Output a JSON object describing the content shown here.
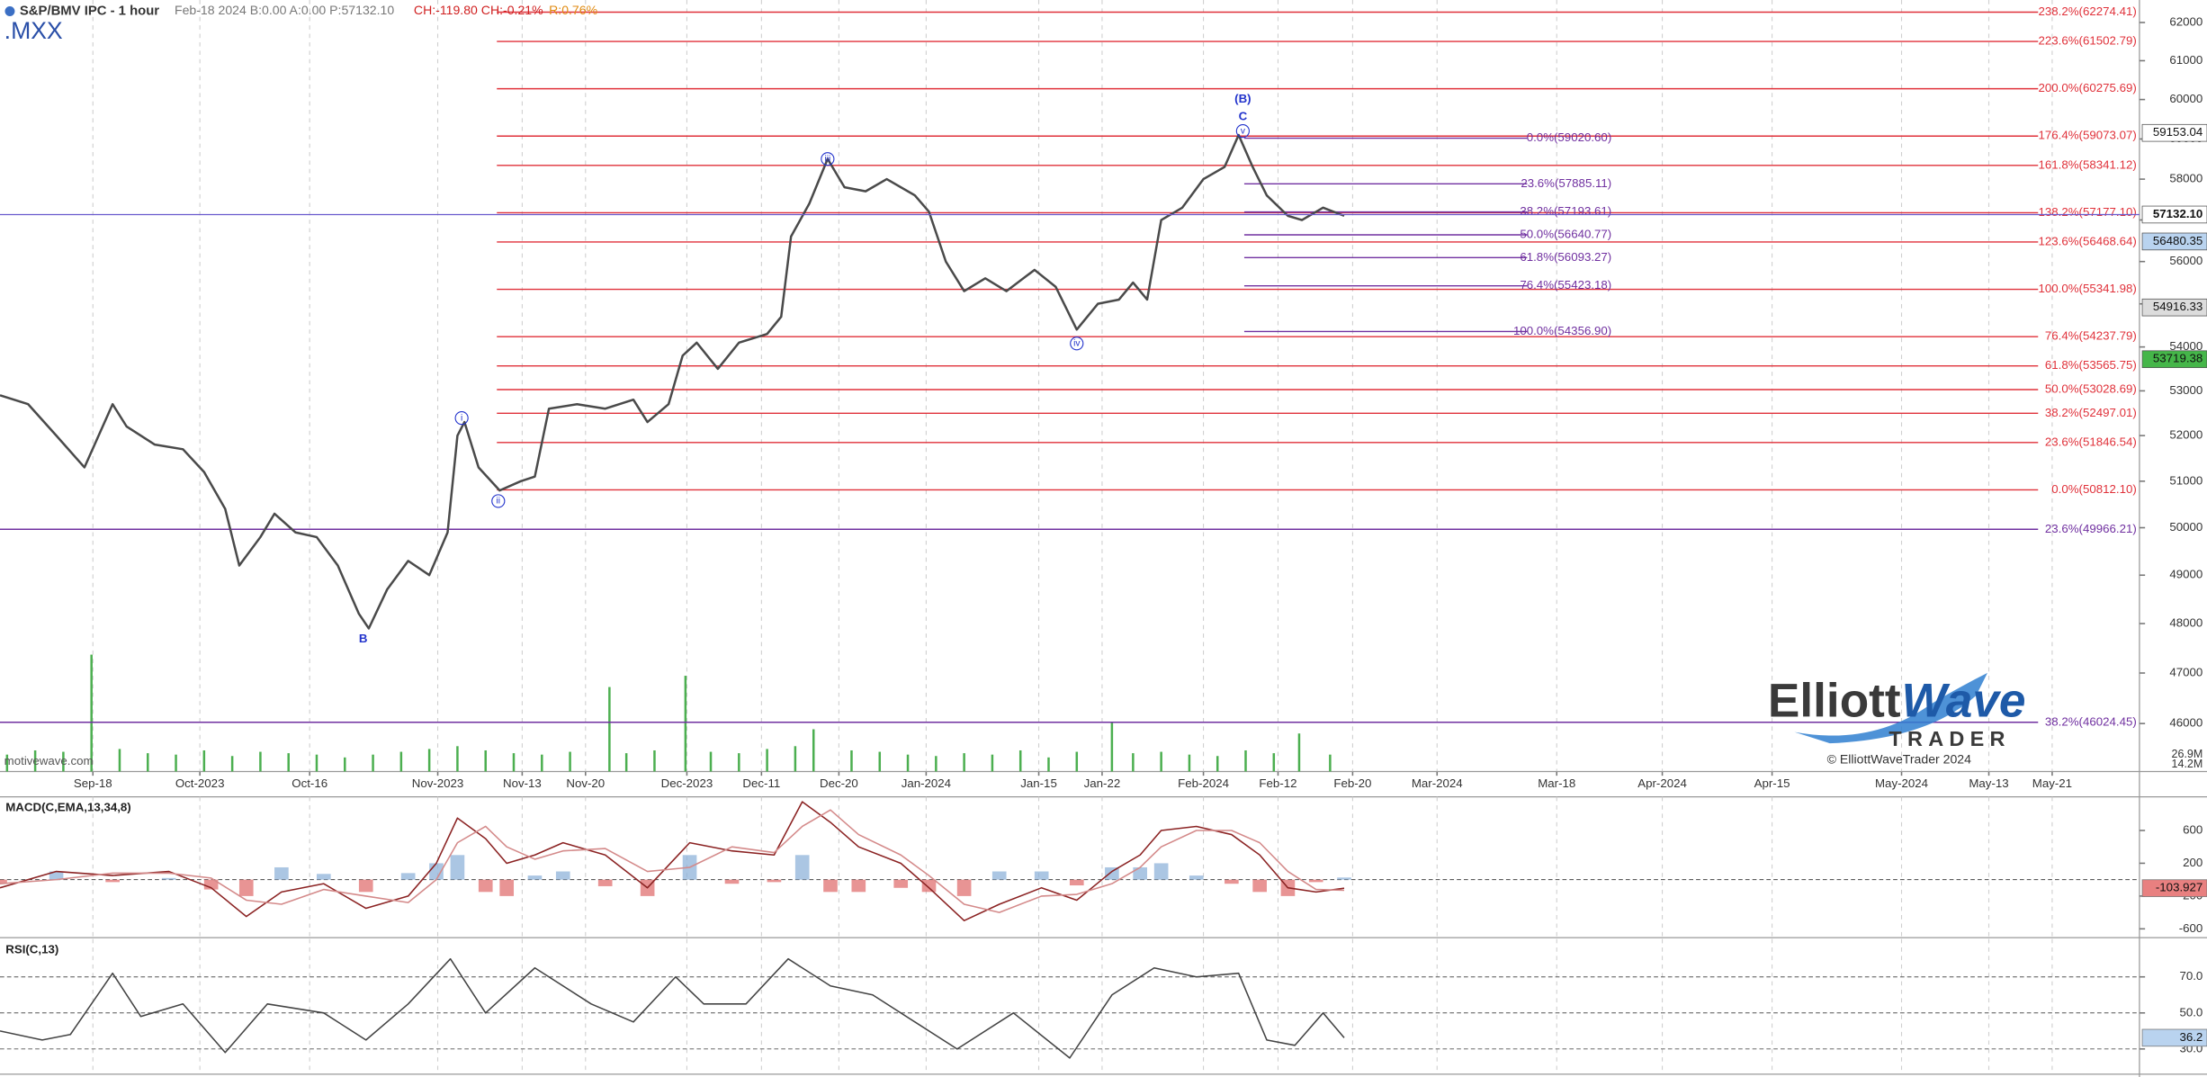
{
  "header": {
    "symbol_line": "S&P/BMV IPC - 1 hour",
    "quote": "Feb-18 2024 B:0.00 A:0.00 P:57132.10",
    "change": "CH:-119.80 CH:-0.21%",
    "range": "R:0.76%",
    "ticker": ".MXX"
  },
  "watermark": "motivewave.com",
  "logo": {
    "word1": "Elliott",
    "word2": "Wave",
    "word3": "TRADER",
    "copyright": "© ElliottWaveTrader 2024"
  },
  "chart_data": [
    {
      "type": "line",
      "log": true,
      "grid": true,
      "color": "#4a4a4a",
      "x": [
        0,
        20,
        40,
        60,
        80,
        90,
        110,
        130,
        145,
        160,
        170,
        185,
        195,
        210,
        225,
        240,
        255,
        262,
        275,
        290,
        305,
        318,
        325,
        330,
        340,
        355,
        370,
        380,
        390,
        410,
        430,
        450,
        460,
        475,
        485,
        495,
        510,
        525,
        545,
        555,
        562,
        575,
        588,
        600,
        615,
        630,
        650,
        660,
        672,
        685,
        700,
        715,
        735,
        750,
        765,
        780,
        795,
        805,
        815,
        825,
        840,
        855,
        870,
        880,
        890,
        900,
        915,
        925,
        940,
        955
      ],
      "values": [
        52900,
        52700,
        52000,
        51300,
        52700,
        52200,
        51800,
        51700,
        51200,
        50400,
        49200,
        49800,
        50300,
        49900,
        49800,
        49200,
        48200,
        47900,
        48700,
        49300,
        49000,
        49900,
        52000,
        52300,
        51300,
        50800,
        51000,
        51100,
        52600,
        52700,
        52600,
        52800,
        52300,
        52700,
        53800,
        54100,
        53500,
        54100,
        54300,
        54700,
        56600,
        57400,
        58500,
        57800,
        57700,
        58000,
        57600,
        57200,
        56000,
        55300,
        55600,
        55300,
        55800,
        55400,
        54400,
        55000,
        55100,
        55500,
        55100,
        57000,
        57300,
        58000,
        58300,
        59100,
        58300,
        57600,
        57100,
        57000,
        57300,
        57100
      ],
      "xlim": [
        0,
        1520
      ],
      "xticks": [
        {
          "value": 66,
          "label": "Sep-18"
        },
        {
          "value": 142,
          "label": "Oct-2023"
        },
        {
          "value": 220,
          "label": "Oct-16"
        },
        {
          "value": 311,
          "label": "Nov-2023"
        },
        {
          "value": 371,
          "label": "Nov-13"
        },
        {
          "value": 416,
          "label": "Nov-20"
        },
        {
          "value": 488,
          "label": "Dec-2023"
        },
        {
          "value": 541,
          "label": "Dec-11"
        },
        {
          "value": 596,
          "label": "Dec-20"
        },
        {
          "value": 658,
          "label": "Jan-2024"
        },
        {
          "value": 738,
          "label": "Jan-15"
        },
        {
          "value": 783,
          "label": "Jan-22"
        },
        {
          "value": 855,
          "label": "Feb-2024"
        },
        {
          "value": 908,
          "label": "Feb-12"
        },
        {
          "value": 961,
          "label": "Feb-20"
        },
        {
          "value": 1021,
          "label": "Mar-2024"
        },
        {
          "value": 1106,
          "label": "Mar-18"
        },
        {
          "value": 1181,
          "label": "Apr-2024"
        },
        {
          "value": 1259,
          "label": "Apr-15"
        },
        {
          "value": 1351,
          "label": "May-2024"
        },
        {
          "value": 1413,
          "label": "May-13"
        },
        {
          "value": 1458,
          "label": "May-21"
        }
      ],
      "ylim": [
        45070,
        62597
      ],
      "yticks": [
        46000,
        47000,
        48000,
        49000,
        50000,
        51000,
        52000,
        53000,
        54000,
        55000,
        56000,
        57000,
        58000,
        59000,
        60000,
        61000,
        62000
      ],
      "volume": {
        "color": "#4caf50",
        "vlim": [
          0,
          100
        ],
        "x": [
          5,
          25,
          45,
          65,
          85,
          105,
          125,
          145,
          165,
          185,
          205,
          225,
          245,
          265,
          285,
          305,
          325,
          345,
          365,
          385,
          405,
          433,
          445,
          465,
          487,
          505,
          525,
          545,
          565,
          578,
          605,
          625,
          645,
          665,
          685,
          705,
          725,
          745,
          765,
          790,
          805,
          825,
          845,
          865,
          885,
          905,
          923,
          945
        ],
        "values": [
          12,
          15,
          14,
          83,
          16,
          13,
          12,
          15,
          11,
          14,
          13,
          12,
          10,
          12,
          14,
          16,
          18,
          15,
          13,
          12,
          14,
          60,
          13,
          15,
          68,
          14,
          13,
          16,
          18,
          30,
          15,
          14,
          12,
          11,
          13,
          12,
          15,
          10,
          14,
          35,
          13,
          14,
          12,
          11,
          15,
          13,
          27,
          12
        ],
        "labels": [
          "26.9M",
          "14.2M"
        ]
      },
      "fib_groups": [
        {
          "color": "#e0313a",
          "from": 353,
          "levels": [
            {
              "label": "238.2%(62274.41)",
              "price": 62274.41
            },
            {
              "label": "223.6%(61502.79)",
              "price": 61502.79
            },
            {
              "label": "200.0%(60275.69)",
              "price": 60275.69
            },
            {
              "label": "176.4%(59073.07)",
              "price": 59073.07
            },
            {
              "label": "161.8%(58341.12)",
              "price": 58341.12
            },
            {
              "label": "138.2%(57177.10)",
              "price": 57177.1
            },
            {
              "label": "123.6%(56468.64)",
              "price": 56468.64
            },
            {
              "label": "100.0%(55341.98)",
              "price": 55341.98
            },
            {
              "label": "76.4%(54237.79)",
              "price": 54237.79
            },
            {
              "label": "61.8%(53565.75)",
              "price": 53565.75
            },
            {
              "label": "50.0%(53028.69)",
              "price": 53028.69
            },
            {
              "label": "38.2%(52497.01)",
              "price": 52497.01
            },
            {
              "label": "23.6%(51846.54)",
              "price": 51846.54
            },
            {
              "label": "0.0%(50812.10)",
              "price": 50812.1
            }
          ]
        },
        {
          "color": "#7030a0",
          "from": 884,
          "levels": [
            {
              "label": "0.0%(59020.60)",
              "price": 59020.6
            },
            {
              "label": "23.6%(57885.11)",
              "price": 57885.11
            },
            {
              "label": "38.2%(57193.61)",
              "price": 57193.61
            },
            {
              "label": "50.0%(56640.77)",
              "price": 56640.77
            },
            {
              "label": "61.8%(56093.27)",
              "price": 56093.27
            },
            {
              "label": "76.4%(55423.18)",
              "price": 55423.18
            },
            {
              "label": "100.0%(54356.90)",
              "price": 54356.9
            }
          ]
        },
        {
          "color": "#7030a0",
          "from": 0,
          "levels": [
            {
              "label": "23.6%(49966.21)",
              "price": 49966.21
            },
            {
              "label": "38.2%(46024.45)",
              "price": 46024.45
            }
          ]
        }
      ],
      "price_boxes": [
        {
          "value": 59153.04,
          "color": "#ffffff"
        },
        {
          "value": 57132.1,
          "label": "57132.10",
          "color": "#ffffff",
          "line": true
        },
        {
          "value": 56480.35,
          "color": "#b9d3ef"
        },
        {
          "value": 54916.33,
          "color": "#dcdcdc"
        },
        {
          "value": 53719.38,
          "color": "#45b649"
        }
      ],
      "annotations": [
        {
          "text": "(B)",
          "x": 883,
          "price": 60000,
          "circled": false
        },
        {
          "text": "C",
          "x": 883,
          "price": 59560,
          "circled": false
        },
        {
          "text": "v",
          "x": 883,
          "price": 59200,
          "circled": true
        },
        {
          "text": "iii",
          "x": 588,
          "price": 58500,
          "circled": true
        },
        {
          "text": "iv",
          "x": 765,
          "price": 54080,
          "circled": true
        },
        {
          "text": "i",
          "x": 328,
          "price": 52390,
          "circled": true
        },
        {
          "text": "ii",
          "x": 354,
          "price": 50570,
          "circled": true
        },
        {
          "text": "B",
          "x": 258,
          "price": 47680,
          "circled": false
        }
      ]
    },
    {
      "type": "line",
      "title": "MACD(C,EMA,13,34,8)",
      "x": [
        0,
        40,
        80,
        120,
        150,
        175,
        200,
        230,
        260,
        290,
        310,
        325,
        345,
        360,
        380,
        400,
        430,
        460,
        490,
        520,
        550,
        570,
        590,
        610,
        640,
        660,
        685,
        710,
        740,
        765,
        790,
        810,
        825,
        850,
        875,
        895,
        915,
        935,
        955
      ],
      "series": [
        {
          "color": "#8b2323",
          "values": [
            -100,
            100,
            50,
            100,
            -100,
            -450,
            -150,
            -50,
            -350,
            -200,
            200,
            750,
            500,
            200,
            300,
            450,
            300,
            -100,
            450,
            350,
            300,
            950,
            700,
            400,
            200,
            -100,
            -500,
            -300,
            -100,
            -250,
            100,
            300,
            600,
            650,
            550,
            300,
            -100,
            -150,
            -104
          ]
        },
        {
          "color": "#d48a8a",
          "values": [
            -50,
            0,
            80,
            80,
            20,
            -250,
            -300,
            -120,
            -200,
            -280,
            0,
            450,
            650,
            400,
            250,
            350,
            380,
            100,
            150,
            400,
            330,
            650,
            850,
            550,
            300,
            50,
            -300,
            -400,
            -200,
            -180,
            -50,
            150,
            400,
            600,
            600,
            450,
            100,
            -120,
            -130
          ]
        }
      ],
      "histogram": {
        "pos_color": "#8fb3d9",
        "neg_color": "#e07070",
        "values": [
          -50,
          100,
          -30,
          20,
          -120,
          -200,
          150,
          70,
          -150,
          80,
          200,
          300,
          -150,
          -200,
          50,
          100,
          -80,
          -200,
          300,
          -50,
          -30,
          300,
          -150,
          -150,
          -100,
          -150,
          -200,
          100,
          100,
          -70,
          150,
          150,
          200,
          50,
          -50,
          -150,
          -200,
          -30,
          26
        ]
      },
      "ylim": [
        -690,
        1010
      ],
      "yticks": [
        -600,
        -200,
        200,
        600
      ],
      "last_value": -103.927
    },
    {
      "type": "line",
      "title": "RSI(C,13)",
      "color": "#444444",
      "x": [
        0,
        30,
        50,
        80,
        100,
        130,
        160,
        190,
        230,
        260,
        290,
        320,
        345,
        380,
        420,
        450,
        480,
        500,
        530,
        560,
        590,
        620,
        650,
        680,
        720,
        760,
        790,
        820,
        850,
        880,
        900,
        920,
        940,
        955
      ],
      "values": [
        40,
        35,
        38,
        72,
        48,
        55,
        28,
        55,
        50,
        35,
        55,
        80,
        50,
        75,
        55,
        45,
        70,
        55,
        55,
        80,
        65,
        60,
        45,
        30,
        50,
        25,
        60,
        75,
        70,
        72,
        35,
        32,
        50,
        36.2
      ],
      "ylim": [
        16,
        91
      ],
      "yticks": [
        {
          "value": 30,
          "label": "30.0"
        },
        {
          "value": 50,
          "label": "50.0"
        },
        {
          "value": 70,
          "label": "70.0"
        }
      ],
      "last_value": 36.2
    }
  ]
}
